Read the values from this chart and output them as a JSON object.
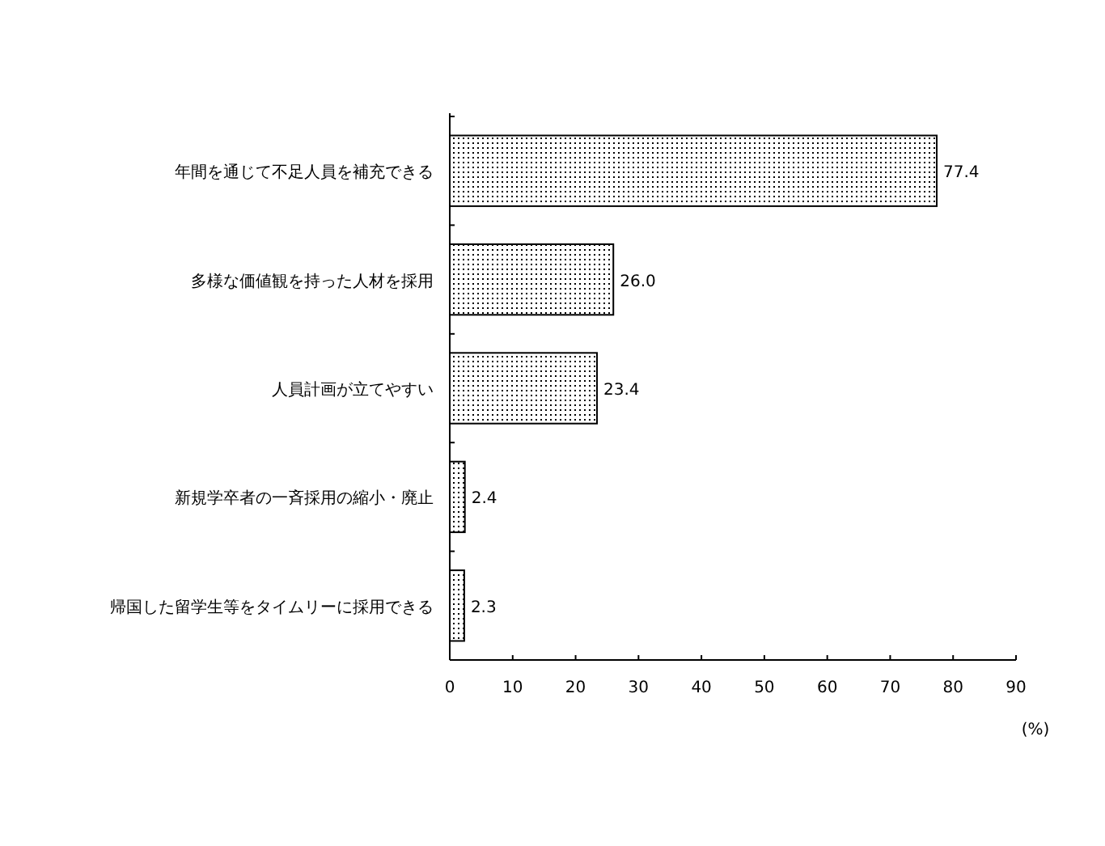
{
  "chart_data": {
    "type": "bar",
    "orientation": "horizontal",
    "categories": [
      "年間を通じて不足人員を補充できる",
      "多様な価値観を持った人材を採用",
      "人員計画が立てやすい",
      "新規学卒者の一斉採用の縮小・廃止",
      "帰国した留学生等をタイムリーに採用できる"
    ],
    "values": [
      77.4,
      26.0,
      23.4,
      2.4,
      2.3
    ],
    "value_labels": [
      "77.4",
      "26.0",
      "23.4",
      "2.4",
      "2.3"
    ],
    "xlim": [
      0,
      90
    ],
    "xticks": [
      0,
      10,
      20,
      30,
      40,
      50,
      60,
      70,
      80,
      90
    ],
    "xlabel": "(%)",
    "grid": false
  }
}
